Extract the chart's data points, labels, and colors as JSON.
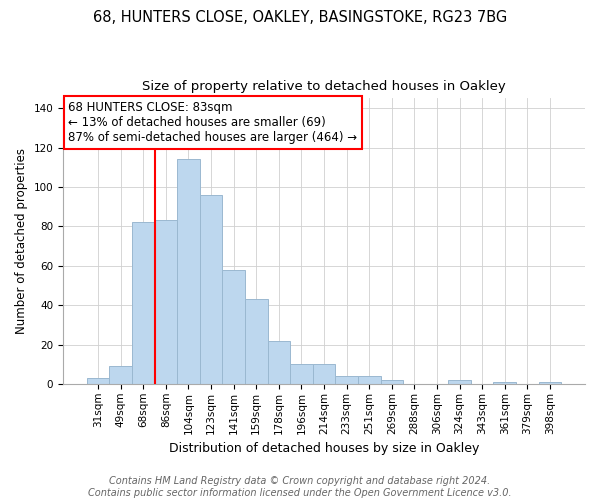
{
  "title1": "68, HUNTERS CLOSE, OAKLEY, BASINGSTOKE, RG23 7BG",
  "title2": "Size of property relative to detached houses in Oakley",
  "xlabel": "Distribution of detached houses by size in Oakley",
  "ylabel": "Number of detached properties",
  "bar_labels": [
    "31sqm",
    "49sqm",
    "68sqm",
    "86sqm",
    "104sqm",
    "123sqm",
    "141sqm",
    "159sqm",
    "178sqm",
    "196sqm",
    "214sqm",
    "233sqm",
    "251sqm",
    "269sqm",
    "288sqm",
    "306sqm",
    "324sqm",
    "343sqm",
    "361sqm",
    "379sqm",
    "398sqm"
  ],
  "bar_values": [
    3,
    9,
    82,
    83,
    114,
    96,
    58,
    43,
    22,
    10,
    10,
    4,
    4,
    2,
    0,
    0,
    2,
    0,
    1,
    0,
    1
  ],
  "bar_color": "#bdd7ee",
  "bar_edge_color": "#9ab8d0",
  "vline_color": "red",
  "ylim": [
    0,
    145
  ],
  "yticks": [
    0,
    20,
    40,
    60,
    80,
    100,
    120,
    140
  ],
  "annotation_title": "68 HUNTERS CLOSE: 83sqm",
  "annotation_line1": "← 13% of detached houses are smaller (69)",
  "annotation_line2": "87% of semi-detached houses are larger (464) →",
  "footer1": "Contains HM Land Registry data © Crown copyright and database right 2024.",
  "footer2": "Contains public sector information licensed under the Open Government Licence v3.0.",
  "title1_fontsize": 10.5,
  "title2_fontsize": 9.5,
  "xlabel_fontsize": 9,
  "ylabel_fontsize": 8.5,
  "annotation_fontsize": 8.5,
  "tick_fontsize": 7.5,
  "footer_fontsize": 7
}
